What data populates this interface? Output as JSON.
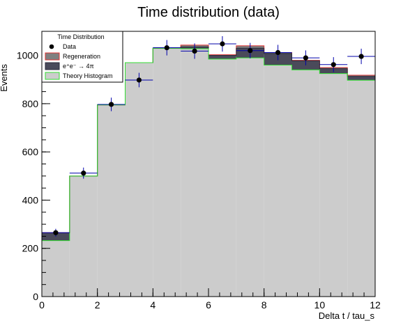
{
  "chart_data": {
    "type": "bar",
    "title": "Time distribution (data)",
    "xlabel": "Delta t / tau_s",
    "ylabel": "Events",
    "xlim": [
      0,
      12
    ],
    "ylim": [
      0,
      1100
    ],
    "x_ticks": [
      0,
      2,
      4,
      6,
      8,
      10,
      12
    ],
    "y_ticks": [
      0,
      200,
      400,
      600,
      800,
      1000
    ],
    "bin_edges": [
      0,
      1,
      2,
      3,
      4,
      5,
      6,
      7,
      8,
      9,
      10,
      11,
      12
    ],
    "legend": {
      "title": "Time Distribution",
      "placement": "top-left",
      "entries": [
        {
          "label": "Data",
          "symbol": "marker"
        },
        {
          "label": "Regeneration",
          "symbol": "box"
        },
        {
          "label": "e⁺e⁻ → 4π",
          "symbol": "box"
        },
        {
          "label": "Theory Histogram",
          "symbol": "box"
        }
      ]
    },
    "series": [
      {
        "name": "Theory Histogram",
        "kind": "hist",
        "fill": "#cccccc",
        "line": "#33dd33",
        "values": [
          232,
          500,
          795,
          970,
          1030,
          1028,
          985,
          990,
          960,
          940,
          925,
          897
        ]
      },
      {
        "name": "e⁺e⁻ → 4π",
        "kind": "stack",
        "fill": "#4a4a5a",
        "line": "#2a2a3a",
        "values": [
          265,
          500,
          795,
          970,
          1030,
          1035,
          1000,
          1030,
          1008,
          978,
          945,
          913
        ]
      },
      {
        "name": "Regeneration",
        "kind": "stack",
        "fill": "#808080",
        "line": "#dd3333",
        "values": [
          265,
          500,
          795,
          970,
          1030,
          1043,
          1003,
          1040,
          1012,
          980,
          950,
          918
        ]
      },
      {
        "name": "Data",
        "kind": "points",
        "color": "#000000",
        "err_color": "#0000aa",
        "x": [
          0.5,
          1.5,
          2.5,
          3.5,
          4.5,
          5.5,
          6.5,
          7.5,
          8.5,
          9.5,
          10.5,
          11.5
        ],
        "values": [
          265,
          512,
          797,
          898,
          1032,
          1018,
          1048,
          1020,
          1012,
          990,
          962,
          996
        ],
        "errors": [
          16,
          23,
          28,
          30,
          32,
          32,
          32,
          32,
          32,
          31,
          31,
          32
        ]
      }
    ]
  }
}
